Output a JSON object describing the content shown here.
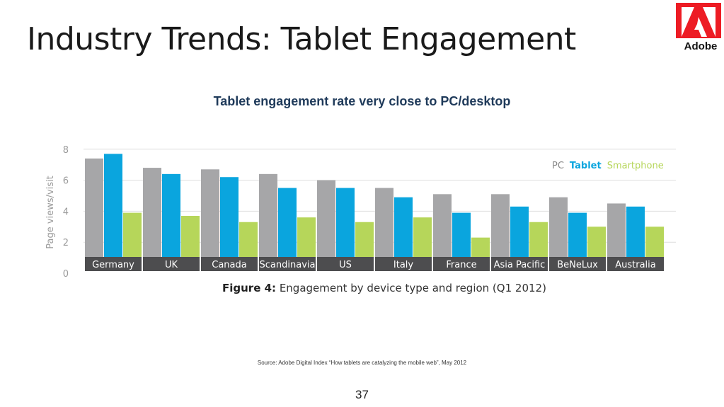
{
  "slide": {
    "title": "Industry Trends:  Tablet Engagement",
    "subtitle": "Tablet engagement rate very close to PC/desktop",
    "logo_text": "Adobe",
    "figure_label": "Figure 4:",
    "figure_caption": " Engagement by device type and region (Q1 2012)",
    "source": "Source:  Adobe Digital Index “How tablets are catalyzing the mobile web”, May 2012",
    "page_number": "37"
  },
  "colors": {
    "PC": "#a6a6a8",
    "Tablet": "#0aa5de",
    "Smartphone": "#b6d65a",
    "category_band": "#4d4d4f",
    "grid": "#dedede",
    "axis_text": "#9a9a9a",
    "logo_red": "#ed1c24"
  },
  "chart_data": {
    "type": "bar",
    "ylabel": "Page views/visit",
    "ylim": [
      0,
      8
    ],
    "yticks": [
      0,
      2,
      4,
      6,
      8
    ],
    "grid": true,
    "legend_position": "top-right",
    "categories": [
      "Germany",
      "UK",
      "Canada",
      "Scandinavia",
      "US",
      "Italy",
      "France",
      "Asia Pacific",
      "BeNeLux",
      "Australia"
    ],
    "series": [
      {
        "name": "PC",
        "values": [
          7.4,
          6.8,
          6.7,
          6.4,
          6.0,
          5.5,
          5.1,
          5.1,
          4.9,
          4.5
        ]
      },
      {
        "name": "Tablet",
        "values": [
          7.7,
          6.4,
          6.2,
          5.5,
          5.5,
          4.9,
          3.9,
          4.3,
          3.9,
          4.3
        ]
      },
      {
        "name": "Smartphone",
        "values": [
          3.9,
          3.7,
          3.3,
          3.6,
          3.3,
          3.6,
          2.3,
          3.3,
          3.0,
          3.0
        ]
      }
    ]
  }
}
